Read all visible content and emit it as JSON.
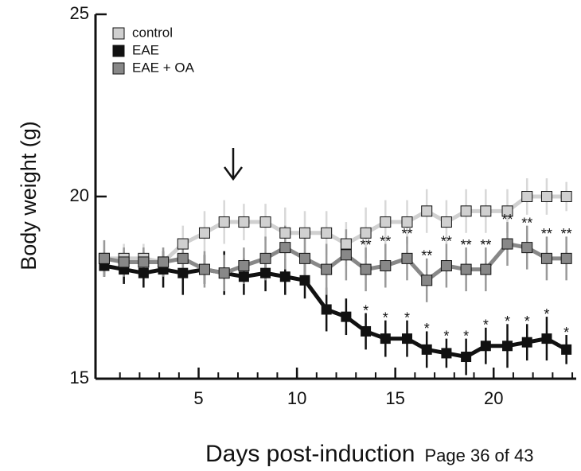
{
  "chart_data": {
    "type": "line",
    "x_label": "Days post-induction",
    "y_label": "Body weight (g)",
    "x": [
      0.2,
      1.2,
      2.2,
      3.2,
      4.2,
      5.3,
      6.3,
      7.3,
      8.4,
      9.4,
      10.4,
      11.5,
      12.5,
      13.5,
      14.5,
      15.6,
      16.6,
      17.6,
      18.6,
      19.6,
      20.7,
      21.7,
      22.7,
      23.7
    ],
    "xlim": [
      0,
      24.2
    ],
    "xticks": [
      5,
      10,
      15,
      20
    ],
    "ylim": [
      15,
      25
    ],
    "yticks": [
      15,
      20,
      25
    ],
    "legend": "top-left",
    "series": [
      {
        "name": "control",
        "color": "#d0d0d0",
        "err_color": "#d8d8d8",
        "values": [
          18.3,
          18.3,
          18.3,
          18.2,
          18.7,
          19.0,
          19.3,
          19.3,
          19.3,
          19.0,
          19.0,
          19.0,
          18.7,
          19.0,
          19.3,
          19.3,
          19.6,
          19.3,
          19.6,
          19.6,
          19.6,
          20.0,
          20.0,
          20.0
        ],
        "errors": [
          0.5,
          0.4,
          0.4,
          0.4,
          0.5,
          0.6,
          0.6,
          0.5,
          0.5,
          0.7,
          0.6,
          0.6,
          0.6,
          0.7,
          0.6,
          0.6,
          0.6,
          0.6,
          0.6,
          0.6,
          0.6,
          0.5,
          0.5,
          0.4
        ]
      },
      {
        "name": "EAE",
        "color": "#111111",
        "err_color": "#111111",
        "values": [
          18.1,
          18.0,
          17.9,
          18.0,
          17.9,
          18.0,
          17.9,
          17.8,
          17.9,
          17.8,
          17.7,
          16.9,
          16.7,
          16.3,
          16.1,
          16.1,
          15.8,
          15.7,
          15.6,
          15.9,
          15.9,
          16.0,
          16.1,
          15.8
        ],
        "errors": [
          0.3,
          0.4,
          0.4,
          0.5,
          0.6,
          0.4,
          0.6,
          0.5,
          0.5,
          0.5,
          0.5,
          0.6,
          0.5,
          0.5,
          0.5,
          0.5,
          0.5,
          0.4,
          0.5,
          0.5,
          0.6,
          0.5,
          0.6,
          0.4
        ],
        "significance": [
          null,
          null,
          null,
          null,
          null,
          null,
          null,
          null,
          null,
          null,
          null,
          null,
          null,
          "*",
          "*",
          "*",
          "*",
          "*",
          "*",
          "*",
          "*",
          "*",
          "*",
          "*"
        ]
      },
      {
        "name": "EAE + OA",
        "color": "#888888",
        "err_color": "#999999",
        "values": [
          18.3,
          18.2,
          18.2,
          18.2,
          18.3,
          18.0,
          17.9,
          18.1,
          18.3,
          18.6,
          18.3,
          18.0,
          18.4,
          18.0,
          18.1,
          18.3,
          17.7,
          18.1,
          18.0,
          18.0,
          18.7,
          18.6,
          18.3,
          18.3
        ],
        "errors": [
          0.5,
          0.4,
          0.4,
          0.4,
          0.4,
          0.5,
          0.5,
          0.5,
          0.6,
          0.6,
          0.7,
          0.7,
          0.7,
          0.6,
          0.6,
          0.6,
          0.6,
          0.6,
          0.6,
          0.6,
          0.6,
          0.6,
          0.6,
          0.6
        ],
        "significance": [
          null,
          null,
          null,
          null,
          null,
          null,
          null,
          null,
          null,
          null,
          null,
          null,
          null,
          "**",
          "**",
          "**",
          "**",
          "**",
          "**",
          "**",
          "**",
          "**",
          "**",
          "**"
        ]
      }
    ]
  },
  "footer": "Page 36 of 43"
}
